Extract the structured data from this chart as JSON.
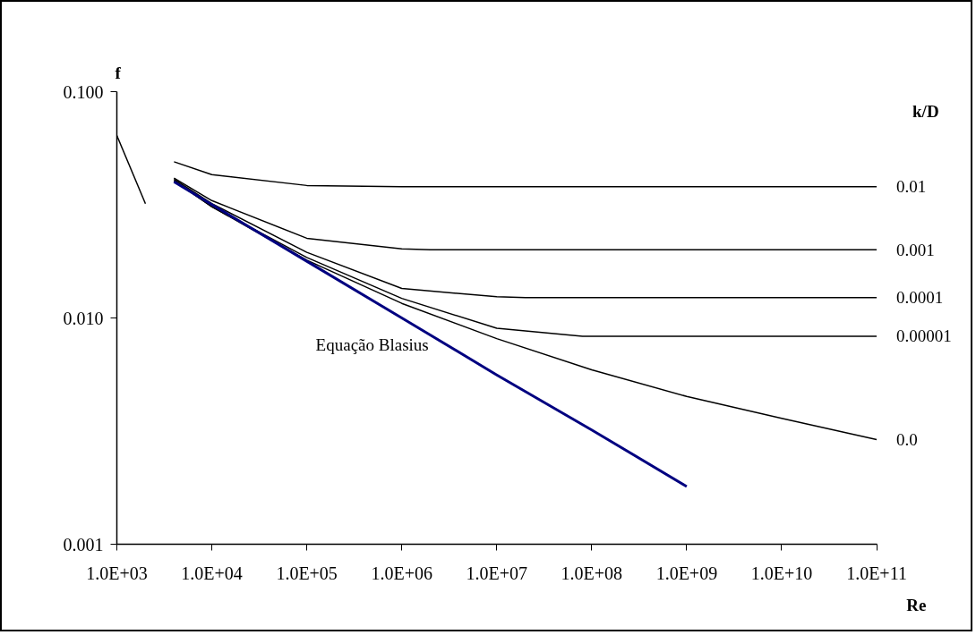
{
  "chart_data": {
    "type": "line",
    "xlabel": "Re",
    "ylabel": "f",
    "legend_title": "k/D",
    "log": "xy",
    "grid": false,
    "marker": "none",
    "line_style": "solid",
    "xlim": [
      1000,
      100000000000
    ],
    "ylim": [
      0.001,
      0.1
    ],
    "xticks": [
      {
        "value": 1000,
        "label": "1.0E+03"
      },
      {
        "value": 10000,
        "label": "1.0E+04"
      },
      {
        "value": 100000,
        "label": "1.0E+05"
      },
      {
        "value": 1000000,
        "label": "1.0E+06"
      },
      {
        "value": 10000000,
        "label": "1.0E+07"
      },
      {
        "value": 100000000,
        "label": "1.0E+08"
      },
      {
        "value": 1000000000,
        "label": "1.0E+09"
      },
      {
        "value": 10000000000,
        "label": "1.0E+10"
      },
      {
        "value": 100000000000,
        "label": "1.0E+11"
      }
    ],
    "yticks": [
      {
        "value": 0.001,
        "label": "0.001"
      },
      {
        "value": 0.01,
        "label": "0.010"
      },
      {
        "value": 0.1,
        "label": "0.100"
      }
    ],
    "series": [
      {
        "color": "#000000",
        "x": [
          1000,
          2000
        ],
        "values": [
          0.064,
          0.032
        ]
      },
      {
        "name": "0.01",
        "color": "#000000",
        "x": [
          4000,
          10000,
          100000,
          1000000,
          10000000,
          100000000000
        ],
        "values": [
          0.049,
          0.043,
          0.0385,
          0.038,
          0.038,
          0.038
        ]
      },
      {
        "name": "0.001",
        "color": "#000000",
        "x": [
          4000,
          10000,
          100000,
          1000000,
          2000000,
          100000000000
        ],
        "values": [
          0.0415,
          0.033,
          0.0225,
          0.0202,
          0.02,
          0.02
        ]
      },
      {
        "name": "0.0001",
        "color": "#000000",
        "x": [
          4000,
          10000,
          100000,
          1000000,
          10000000,
          20000000,
          100000000000
        ],
        "values": [
          0.041,
          0.032,
          0.0195,
          0.0135,
          0.0124,
          0.0123,
          0.0123
        ]
      },
      {
        "name": "0.00001",
        "color": "#000000",
        "x": [
          4000,
          10000,
          100000,
          1000000,
          10000000,
          80000000,
          100000000000
        ],
        "values": [
          0.0405,
          0.031,
          0.0185,
          0.0122,
          0.009,
          0.0083,
          0.0083
        ]
      },
      {
        "name": "0.0",
        "color": "#000000",
        "x": [
          4000,
          10000,
          100000,
          1000000,
          10000000,
          100000000,
          1000000000,
          10000000000,
          100000000000
        ],
        "values": [
          0.0405,
          0.031,
          0.018,
          0.0116,
          0.0081,
          0.0059,
          0.0045,
          0.0036,
          0.0029
        ]
      },
      {
        "name": "Equação Blasius",
        "color": "#000080",
        "x": [
          4000,
          10000,
          100000,
          1000000,
          10000000,
          100000000,
          1000000000
        ],
        "values": [
          0.04,
          0.0317,
          0.0178,
          0.01,
          0.0056,
          0.0032,
          0.0018
        ]
      }
    ]
  }
}
